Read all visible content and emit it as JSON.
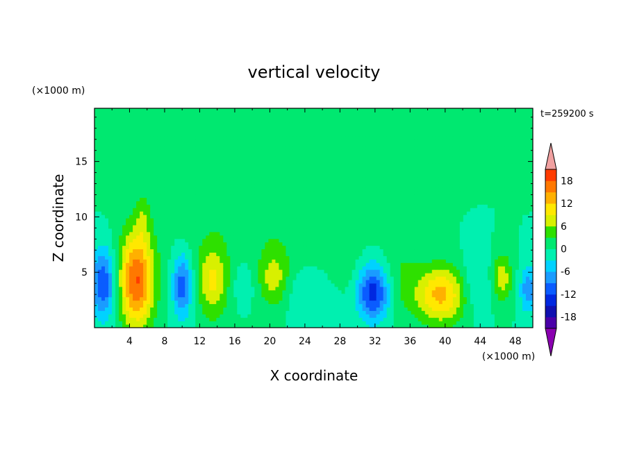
{
  "chart_data": {
    "type": "heatmap",
    "title": "vertical velocity",
    "xlabel": "X coordinate",
    "ylabel": "Z coordinate",
    "x_unit": "(×1000 m)",
    "y_unit": "(×1000 m)",
    "time_label": "t=259200 s",
    "xlim": [
      0,
      50
    ],
    "ylim": [
      0,
      19.8
    ],
    "xticks": [
      "4",
      "8",
      "12",
      "16",
      "20",
      "24",
      "28",
      "32",
      "36",
      "40",
      "44",
      "48"
    ],
    "yticks": [
      "5",
      "10",
      "15"
    ],
    "colorbar": {
      "levels": [
        -21,
        -18,
        -15,
        -12,
        -9,
        -6,
        -3,
        0,
        3,
        6,
        9,
        12,
        15,
        18,
        21
      ],
      "tick_labels": [
        "18",
        "12",
        "6",
        "0",
        "-6",
        "-12",
        "-18"
      ],
      "colors": [
        "#8a00b0",
        "#4a00a8",
        "#1010b0",
        "#0028e0",
        "#0a5cff",
        "#1a9cff",
        "#00d2ff",
        "#00f0b0",
        "#00e870",
        "#2ee000",
        "#d8f000",
        "#ffe800",
        "#ffb000",
        "#ff7800",
        "#ff3c00",
        "#f0a0a0"
      ]
    },
    "features": [
      {
        "x": 1.0,
        "z": 4.0,
        "sx": 1.0,
        "sz": 2.2,
        "w": -12
      },
      {
        "x": 4.8,
        "z": 4.3,
        "sx": 1.4,
        "sz": 3.0,
        "w": 18
      },
      {
        "x": 5.5,
        "z": 10.0,
        "sx": 0.6,
        "sz": 1.5,
        "w": 4
      },
      {
        "x": 10.0,
        "z": 3.8,
        "sx": 0.8,
        "sz": 2.0,
        "w": -11
      },
      {
        "x": 13.5,
        "z": 4.3,
        "sx": 1.2,
        "sz": 2.3,
        "w": 9
      },
      {
        "x": 17.0,
        "z": 4.0,
        "sx": 1.0,
        "sz": 1.6,
        "w": -3
      },
      {
        "x": 20.5,
        "z": 4.5,
        "sx": 1.2,
        "sz": 1.8,
        "w": 7
      },
      {
        "x": 25.0,
        "z": 3.0,
        "sx": 2.5,
        "sz": 2.0,
        "w": -4
      },
      {
        "x": 28.0,
        "z": 5.0,
        "sx": 1.5,
        "sz": 2.0,
        "w": 2
      },
      {
        "x": 31.8,
        "z": 3.2,
        "sx": 1.3,
        "sz": 1.8,
        "w": -14
      },
      {
        "x": 35.0,
        "z": 4.5,
        "sx": 1.5,
        "sz": 2.5,
        "w": 3
      },
      {
        "x": 39.5,
        "z": 3.0,
        "sx": 2.0,
        "sz": 1.8,
        "w": 13
      },
      {
        "x": 43.5,
        "z": 4.0,
        "sx": 1.2,
        "sz": 2.0,
        "w": -4
      },
      {
        "x": 46.5,
        "z": 4.5,
        "sx": 0.8,
        "sz": 1.5,
        "w": 8
      },
      {
        "x": 49.5,
        "z": 3.5,
        "sx": 0.7,
        "sz": 1.5,
        "w": -8
      },
      {
        "x": 24.0,
        "z": 12.0,
        "sx": 6.0,
        "sz": 7.0,
        "w": 2
      },
      {
        "x": 14.0,
        "z": 13.0,
        "sx": 6.0,
        "sz": 6.0,
        "w": 1.5
      }
    ]
  }
}
